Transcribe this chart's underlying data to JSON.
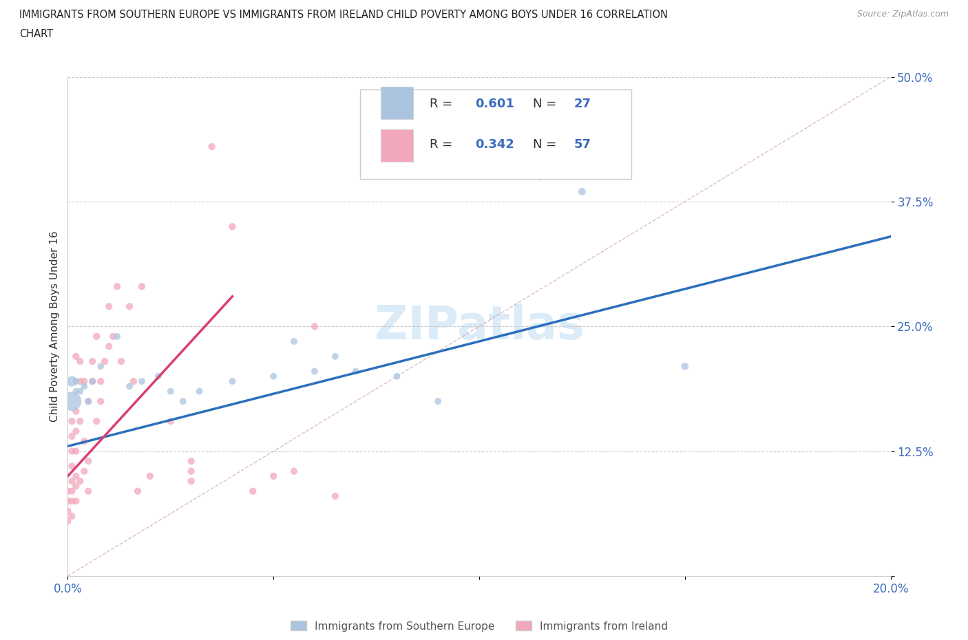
{
  "title_line1": "IMMIGRANTS FROM SOUTHERN EUROPE VS IMMIGRANTS FROM IRELAND CHILD POVERTY AMONG BOYS UNDER 16 CORRELATION",
  "title_line2": "CHART",
  "source": "Source: ZipAtlas.com",
  "ylabel": "Child Poverty Among Boys Under 16",
  "xlim": [
    0.0,
    0.2
  ],
  "ylim": [
    0.0,
    0.5
  ],
  "blue_color": "#aac4e0",
  "pink_color": "#f2a8bc",
  "blue_line_color": "#2c6fbd",
  "pink_line_color": "#d84070",
  "tick_color": "#3a6bbf",
  "R_blue": 0.601,
  "N_blue": 27,
  "R_pink": 0.342,
  "N_pink": 57,
  "watermark_text": "ZIPatlas",
  "blue_points": [
    [
      0.001,
      0.175
    ],
    [
      0.001,
      0.195
    ],
    [
      0.002,
      0.185
    ],
    [
      0.002,
      0.195
    ],
    [
      0.003,
      0.185
    ],
    [
      0.004,
      0.19
    ],
    [
      0.005,
      0.175
    ],
    [
      0.006,
      0.195
    ],
    [
      0.008,
      0.21
    ],
    [
      0.012,
      0.24
    ],
    [
      0.015,
      0.19
    ],
    [
      0.018,
      0.195
    ],
    [
      0.022,
      0.2
    ],
    [
      0.025,
      0.185
    ],
    [
      0.028,
      0.175
    ],
    [
      0.032,
      0.185
    ],
    [
      0.04,
      0.195
    ],
    [
      0.05,
      0.2
    ],
    [
      0.055,
      0.235
    ],
    [
      0.06,
      0.205
    ],
    [
      0.065,
      0.22
    ],
    [
      0.07,
      0.205
    ],
    [
      0.08,
      0.2
    ],
    [
      0.09,
      0.175
    ],
    [
      0.115,
      0.4
    ],
    [
      0.125,
      0.385
    ],
    [
      0.15,
      0.21
    ]
  ],
  "blue_sizes": [
    400,
    120,
    50,
    50,
    50,
    50,
    50,
    50,
    50,
    50,
    50,
    50,
    50,
    50,
    50,
    50,
    50,
    50,
    50,
    50,
    50,
    50,
    50,
    50,
    60,
    60,
    60
  ],
  "pink_points": [
    [
      0.0,
      0.055
    ],
    [
      0.0,
      0.065
    ],
    [
      0.0,
      0.075
    ],
    [
      0.0,
      0.085
    ],
    [
      0.001,
      0.06
    ],
    [
      0.001,
      0.075
    ],
    [
      0.001,
      0.085
    ],
    [
      0.001,
      0.095
    ],
    [
      0.001,
      0.11
    ],
    [
      0.001,
      0.125
    ],
    [
      0.001,
      0.14
    ],
    [
      0.001,
      0.155
    ],
    [
      0.002,
      0.075
    ],
    [
      0.002,
      0.09
    ],
    [
      0.002,
      0.1
    ],
    [
      0.002,
      0.125
    ],
    [
      0.002,
      0.145
    ],
    [
      0.002,
      0.165
    ],
    [
      0.002,
      0.22
    ],
    [
      0.003,
      0.095
    ],
    [
      0.003,
      0.155
    ],
    [
      0.003,
      0.195
    ],
    [
      0.003,
      0.215
    ],
    [
      0.004,
      0.105
    ],
    [
      0.004,
      0.135
    ],
    [
      0.004,
      0.195
    ],
    [
      0.005,
      0.085
    ],
    [
      0.005,
      0.115
    ],
    [
      0.005,
      0.175
    ],
    [
      0.006,
      0.195
    ],
    [
      0.006,
      0.215
    ],
    [
      0.007,
      0.155
    ],
    [
      0.007,
      0.24
    ],
    [
      0.008,
      0.175
    ],
    [
      0.008,
      0.195
    ],
    [
      0.009,
      0.215
    ],
    [
      0.01,
      0.23
    ],
    [
      0.01,
      0.27
    ],
    [
      0.011,
      0.24
    ],
    [
      0.012,
      0.29
    ],
    [
      0.013,
      0.215
    ],
    [
      0.015,
      0.27
    ],
    [
      0.016,
      0.195
    ],
    [
      0.017,
      0.085
    ],
    [
      0.018,
      0.29
    ],
    [
      0.02,
      0.1
    ],
    [
      0.025,
      0.155
    ],
    [
      0.03,
      0.095
    ],
    [
      0.03,
      0.105
    ],
    [
      0.03,
      0.115
    ],
    [
      0.035,
      0.43
    ],
    [
      0.04,
      0.35
    ],
    [
      0.045,
      0.085
    ],
    [
      0.05,
      0.1
    ],
    [
      0.055,
      0.105
    ],
    [
      0.06,
      0.25
    ],
    [
      0.065,
      0.08
    ]
  ],
  "pink_sizes_uniform": 55,
  "blue_line_x": [
    0.0,
    0.2
  ],
  "blue_line_y": [
    0.13,
    0.34
  ],
  "pink_line_x": [
    0.0,
    0.04
  ],
  "pink_line_y": [
    0.1,
    0.28
  ]
}
